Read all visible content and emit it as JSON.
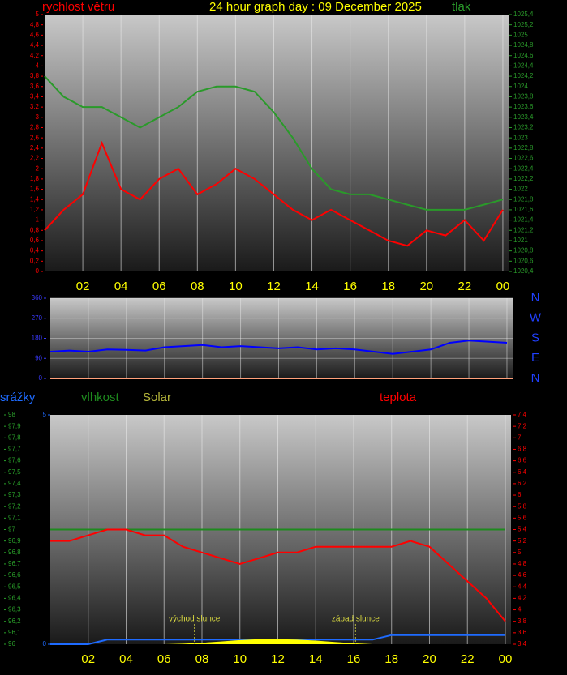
{
  "chart_data": [
    {
      "type": "line",
      "title": "24 hour graph day : 09 December 2025",
      "x": [
        0,
        1,
        2,
        3,
        4,
        5,
        6,
        7,
        8,
        9,
        10,
        11,
        12,
        13,
        14,
        15,
        16,
        17,
        18,
        19,
        20,
        21,
        22,
        23,
        24
      ],
      "xlim": [
        0,
        24.3
      ],
      "xticks": [
        {
          "value": 2,
          "label": "02"
        },
        {
          "value": 4,
          "label": "04"
        },
        {
          "value": 6,
          "label": "06"
        },
        {
          "value": 8,
          "label": "08"
        },
        10,
        12,
        14,
        16,
        18,
        20,
        22,
        {
          "value": 24,
          "label": "00"
        }
      ],
      "grid": true,
      "series": [
        {
          "name": "rychlost větru",
          "color": "#ff0000",
          "axis": "y",
          "values": [
            0.8,
            1.2,
            1.5,
            2.5,
            1.6,
            1.4,
            1.8,
            2.0,
            1.5,
            1.7,
            2.0,
            1.8,
            1.5,
            1.2,
            1.0,
            1.2,
            1.0,
            0.8,
            0.6,
            0.5,
            0.8,
            0.7,
            1.0,
            0.6,
            1.2
          ]
        },
        {
          "name": "tlak",
          "color": "#2a9a2a",
          "axis": "y2",
          "values": [
            1024.2,
            1023.8,
            1023.6,
            1023.6,
            1023.4,
            1023.2,
            1023.4,
            1023.6,
            1023.9,
            1024.0,
            1024.0,
            1023.9,
            1023.5,
            1023.0,
            1022.4,
            1022.0,
            1021.9,
            1021.9,
            1021.8,
            1021.7,
            1021.6,
            1021.6,
            1021.6,
            1021.7,
            1021.8
          ]
        }
      ],
      "ylim": [
        0,
        5
      ],
      "yticks": [
        0,
        {
          "value": 0.2,
          "label": "0,2"
        },
        {
          "value": 0.4,
          "label": "0,4"
        },
        {
          "value": 0.6,
          "label": "0,6"
        },
        {
          "value": 0.8,
          "label": "0,8"
        },
        1,
        {
          "value": 1.2,
          "label": "1,2"
        },
        {
          "value": 1.4,
          "label": "1,4"
        },
        {
          "value": 1.6,
          "label": "1,6"
        },
        {
          "value": 1.8,
          "label": "1,8"
        },
        2,
        {
          "value": 2.2,
          "label": "2,2"
        },
        {
          "value": 2.4,
          "label": "2,4"
        },
        {
          "value": 2.6,
          "label": "2,6"
        },
        {
          "value": 2.8,
          "label": "2,8"
        },
        3,
        {
          "value": 3.2,
          "label": "3,2"
        },
        {
          "value": 3.4,
          "label": "3,4"
        },
        {
          "value": 3.6,
          "label": "3,6"
        },
        {
          "value": 3.8,
          "label": "3,8"
        },
        4,
        {
          "value": 4.2,
          "label": "4,2"
        },
        {
          "value": 4.4,
          "label": "4,4"
        },
        {
          "value": 4.6,
          "label": "4,6"
        },
        {
          "value": 4.8,
          "label": "4,8"
        },
        5
      ],
      "y2lim": [
        1020.4,
        1025.4
      ],
      "y2ticks": [
        {
          "value": 1020.4,
          "label": "1020,4"
        },
        {
          "value": 1020.6,
          "label": "1020,6"
        },
        {
          "value": 1020.8,
          "label": "1020,8"
        },
        1021,
        {
          "value": 1021.2,
          "label": "1021,2"
        },
        {
          "value": 1021.4,
          "label": "1021,4"
        },
        {
          "value": 1021.6,
          "label": "1021,6"
        },
        {
          "value": 1021.8,
          "label": "1021,8"
        },
        1022,
        {
          "value": 1022.2,
          "label": "1022,2"
        },
        {
          "value": 1022.4,
          "label": "1022,4"
        },
        {
          "value": 1022.6,
          "label": "1022,6"
        },
        {
          "value": 1022.8,
          "label": "1022,8"
        },
        1023,
        {
          "value": 1023.2,
          "label": "1023,2"
        },
        {
          "value": 1023.4,
          "label": "1023,4"
        },
        {
          "value": 1023.6,
          "label": "1023,6"
        },
        {
          "value": 1023.8,
          "label": "1023,8"
        },
        1024,
        {
          "value": 1024.2,
          "label": "1024,2"
        },
        {
          "value": 1024.4,
          "label": "1024,4"
        },
        {
          "value": 1024.6,
          "label": "1024,6"
        },
        {
          "value": 1024.8,
          "label": "1024,8"
        },
        1025,
        {
          "value": 1025.2,
          "label": "1025,2"
        },
        {
          "value": 1025.4,
          "label": "1025,4"
        }
      ]
    },
    {
      "type": "line",
      "x": [
        0,
        1,
        2,
        3,
        4,
        5,
        6,
        7,
        8,
        9,
        10,
        11,
        12,
        13,
        14,
        15,
        16,
        17,
        18,
        19,
        20,
        21,
        22,
        23,
        24
      ],
      "xlim": [
        0,
        24.3
      ],
      "grid": true,
      "series": [
        {
          "color": "#0000ff",
          "axis": "y",
          "values": [
            120,
            125,
            120,
            130,
            128,
            125,
            140,
            145,
            150,
            140,
            145,
            140,
            135,
            140,
            130,
            135,
            130,
            120,
            110,
            120,
            130,
            160,
            170,
            165,
            160
          ]
        }
      ],
      "ylim": [
        0,
        360
      ],
      "yticks": [
        0,
        90,
        180,
        270,
        360
      ],
      "compass": [
        "N",
        "W",
        "S",
        "E",
        "N"
      ]
    },
    {
      "type": "line",
      "x": [
        0,
        1,
        2,
        3,
        4,
        5,
        6,
        7,
        8,
        9,
        10,
        11,
        12,
        13,
        14,
        15,
        16,
        17,
        18,
        19,
        20,
        21,
        22,
        23,
        24
      ],
      "xlim": [
        0,
        24.3
      ],
      "xticks": [
        {
          "value": 2,
          "label": "02"
        },
        {
          "value": 4,
          "label": "04"
        },
        {
          "value": 6,
          "label": "06"
        },
        {
          "value": 8,
          "label": "08"
        },
        10,
        12,
        14,
        16,
        18,
        20,
        22,
        {
          "value": 24,
          "label": "00"
        }
      ],
      "grid": true,
      "series": [
        {
          "name": "srážky",
          "color": "#1e6bff",
          "axis": "y3",
          "values": [
            0,
            0,
            0,
            0.1,
            0.1,
            0.1,
            0.1,
            0.1,
            0.1,
            0.1,
            0.1,
            0.1,
            0.1,
            0.1,
            0.1,
            0.1,
            0.1,
            0.1,
            0.2,
            0.2,
            0.2,
            0.2,
            0.2,
            0.2,
            0.2
          ]
        },
        {
          "name": "vlhkost",
          "color": "#1e8a1e",
          "axis": "y",
          "values": [
            97,
            97,
            97,
            97,
            97,
            97,
            97,
            97,
            97,
            97,
            97,
            97,
            97,
            97,
            97,
            97,
            97,
            97,
            97,
            97,
            97,
            97,
            97,
            97,
            97
          ]
        },
        {
          "name": "Solar",
          "color": "#b5b53a",
          "fill": "#ffff00",
          "axis": "y3",
          "values": [
            0,
            0,
            0,
            0,
            0,
            0,
            0,
            0.01,
            0.03,
            0.06,
            0.09,
            0.11,
            0.11,
            0.1,
            0.08,
            0.05,
            0.02,
            0,
            0,
            0,
            0,
            0,
            0,
            0,
            0
          ]
        },
        {
          "name": "teplota",
          "color": "#ff0000",
          "axis": "y2",
          "values": [
            5.2,
            5.2,
            5.3,
            5.4,
            5.4,
            5.3,
            5.3,
            5.1,
            5.0,
            4.9,
            4.8,
            4.9,
            5.0,
            5.0,
            5.1,
            5.1,
            5.1,
            5.1,
            5.1,
            5.2,
            5.1,
            4.8,
            4.5,
            4.2,
            3.8
          ]
        }
      ],
      "ylim": [
        96,
        98
      ],
      "yticks": [
        96,
        {
          "value": 96.1,
          "label": "96,1"
        },
        {
          "value": 96.2,
          "label": "96,2"
        },
        {
          "value": 96.3,
          "label": "96,3"
        },
        {
          "value": 96.4,
          "label": "96,4"
        },
        {
          "value": 96.5,
          "label": "96,5"
        },
        {
          "value": 96.6,
          "label": "96,6"
        },
        {
          "value": 96.7,
          "label": "96,7"
        },
        {
          "value": 96.8,
          "label": "96,8"
        },
        {
          "value": 96.9,
          "label": "96,9"
        },
        97,
        {
          "value": 97.1,
          "label": "97,1"
        },
        {
          "value": 97.2,
          "label": "97,2"
        },
        {
          "value": 97.3,
          "label": "97,3"
        },
        {
          "value": 97.4,
          "label": "97,4"
        },
        {
          "value": 97.5,
          "label": "97,5"
        },
        {
          "value": 97.6,
          "label": "97,6"
        },
        {
          "value": 97.7,
          "label": "97,7"
        },
        {
          "value": 97.8,
          "label": "97,8"
        },
        {
          "value": 97.9,
          "label": "97,9"
        },
        98
      ],
      "y2lim": [
        3.4,
        7.4
      ],
      "y2ticks": [
        {
          "value": 3.4,
          "label": "3,4"
        },
        {
          "value": 3.6,
          "label": "3,6"
        },
        {
          "value": 3.8,
          "label": "3,8"
        },
        4,
        {
          "value": 4.2,
          "label": "4,2"
        },
        {
          "value": 4.4,
          "label": "4,4"
        },
        {
          "value": 4.6,
          "label": "4,6"
        },
        {
          "value": 4.8,
          "label": "4,8"
        },
        5,
        {
          "value": 5.2,
          "label": "5,2"
        },
        {
          "value": 5.4,
          "label": "5,4"
        },
        {
          "value": 5.6,
          "label": "5,6"
        },
        {
          "value": 5.8,
          "label": "5,8"
        },
        6,
        {
          "value": 6.2,
          "label": "6,2"
        },
        {
          "value": 6.4,
          "label": "6,4"
        },
        {
          "value": 6.6,
          "label": "6,6"
        },
        {
          "value": 6.8,
          "label": "6,8"
        },
        7,
        {
          "value": 7.2,
          "label": "7,2"
        },
        {
          "value": 7.4,
          "label": "7,4"
        }
      ],
      "y3lim": [
        0,
        5
      ],
      "y3ticks": [
        0,
        5
      ],
      "annotations": [
        {
          "text": "východ slunce",
          "x": 7.6
        },
        {
          "text": "západ slunce",
          "x": 16.1
        }
      ]
    }
  ]
}
